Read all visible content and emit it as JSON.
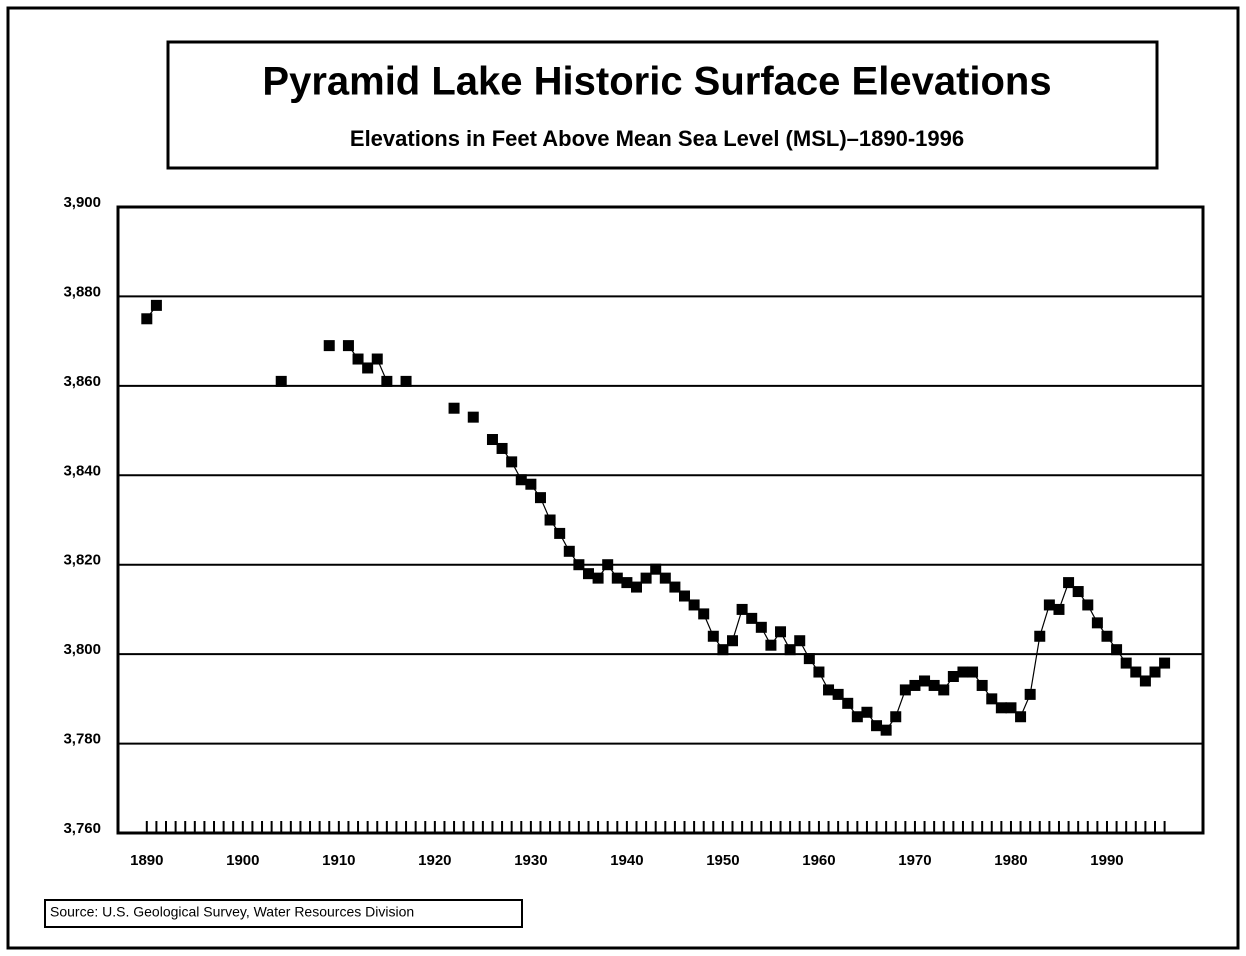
{
  "chart_data": {
    "type": "line",
    "title": "Pyramid Lake Historic Surface Elevations",
    "subtitle": "Elevations in Feet Above Mean Sea Level (MSL)–1890-1996",
    "source": "Source:  U.S. Geological Survey, Water Resources Division",
    "x": [
      1890,
      1891,
      1892,
      1893,
      1894,
      1895,
      1896,
      1897,
      1898,
      1899,
      1900,
      1901,
      1902,
      1903,
      1904,
      1905,
      1906,
      1907,
      1908,
      1909,
      1910,
      1911,
      1912,
      1913,
      1914,
      1915,
      1916,
      1917,
      1918,
      1919,
      1920,
      1921,
      1922,
      1923,
      1924,
      1925,
      1926,
      1927,
      1928,
      1929,
      1930,
      1931,
      1932,
      1933,
      1934,
      1935,
      1936,
      1937,
      1938,
      1939,
      1940,
      1941,
      1942,
      1943,
      1944,
      1945,
      1946,
      1947,
      1948,
      1949,
      1950,
      1951,
      1952,
      1953,
      1954,
      1955,
      1956,
      1957,
      1958,
      1959,
      1960,
      1961,
      1962,
      1963,
      1964,
      1965,
      1966,
      1967,
      1968,
      1969,
      1970,
      1971,
      1972,
      1973,
      1974,
      1975,
      1976,
      1977,
      1978,
      1979,
      1980,
      1981,
      1982,
      1983,
      1984,
      1985,
      1986,
      1987,
      1988,
      1989,
      1990,
      1991,
      1992,
      1993,
      1994,
      1995,
      1996
    ],
    "series": [
      {
        "name": "Elevation",
        "color": "#000000",
        "values": [
          3875,
          3878,
          null,
          null,
          null,
          null,
          null,
          null,
          null,
          null,
          null,
          null,
          null,
          null,
          3861,
          null,
          null,
          null,
          null,
          3869,
          null,
          3869,
          3866,
          3864,
          3866,
          3861,
          null,
          3861,
          null,
          null,
          null,
          null,
          3855,
          null,
          3853,
          null,
          3848,
          3846,
          3843,
          3839,
          3838,
          3835,
          3830,
          3827,
          3823,
          3820,
          3818,
          3817,
          3820,
          3817,
          3816,
          3815,
          3817,
          3819,
          3817,
          3815,
          3813,
          3811,
          3809,
          3804,
          3801,
          3803,
          3810,
          3808,
          3806,
          3802,
          3805,
          3801,
          3803,
          3799,
          3796,
          3792,
          3791,
          3789,
          3786,
          3787,
          3784,
          3783,
          3786,
          3792,
          3793,
          3794,
          3793,
          3792,
          3795,
          3796,
          3796,
          3793,
          3790,
          3788,
          3788,
          3786,
          3791,
          3804,
          3811,
          3810,
          3816,
          3814,
          3811,
          3807,
          3804,
          3801,
          3798,
          3796,
          3794,
          3796,
          3798
        ]
      }
    ],
    "xlim": [
      1887,
      2000
    ],
    "xticks": [
      1890,
      1900,
      1910,
      1920,
      1930,
      1940,
      1950,
      1960,
      1970,
      1980,
      1990
    ],
    "ylim": [
      3760,
      3900
    ],
    "yticks": [
      {
        "value": 3760,
        "label": "3,760"
      },
      {
        "value": 3780,
        "label": "3,780"
      },
      {
        "value": 3800,
        "label": "3,800"
      },
      {
        "value": 3820,
        "label": "3,820"
      },
      {
        "value": 3840,
        "label": "3,840"
      },
      {
        "value": 3860,
        "label": "3,860"
      },
      {
        "value": 3880,
        "label": "3,880"
      },
      {
        "value": 3900,
        "label": "3,900"
      }
    ],
    "grid": true
  }
}
